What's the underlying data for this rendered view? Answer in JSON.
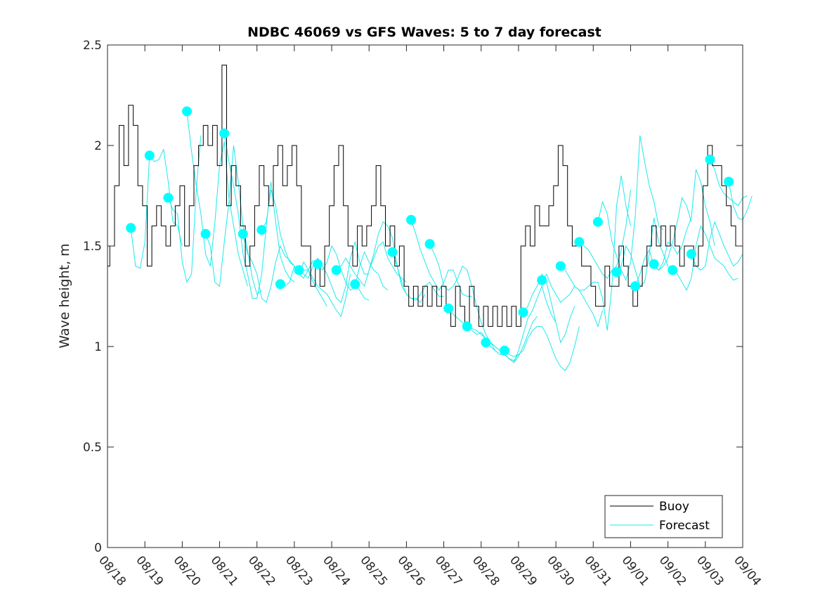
{
  "chart_data": {
    "type": "line",
    "title": "NDBC 46069 vs GFS Waves: 5 to 7 day forecast",
    "xlabel": "",
    "ylabel": "Wave height, m",
    "xlim_days": [
      0,
      17
    ],
    "ylim": [
      0,
      2.5
    ],
    "x_tick_labels": [
      "08/18",
      "08/19",
      "08/20",
      "08/21",
      "08/22",
      "08/23",
      "08/24",
      "08/25",
      "08/26",
      "08/27",
      "08/28",
      "08/29",
      "08/30",
      "08/31",
      "09/01",
      "09/02",
      "09/03",
      "09/04"
    ],
    "y_ticks": [
      0,
      0.5,
      1,
      1.5,
      2,
      2.5
    ],
    "y_tick_labels": [
      "0",
      "0.5",
      "1",
      "1.5",
      "2",
      "2.5"
    ],
    "grid": false,
    "legend": {
      "placement": "bottom-right",
      "entries": [
        {
          "label": "Buoy",
          "color": "#000000"
        },
        {
          "label": "Forecast",
          "color": "#00ffff"
        }
      ]
    },
    "colors": {
      "buoy": "#000000",
      "forecast": "#1de9ec",
      "forecast_marker": "#00ffff",
      "axis": "#262626"
    },
    "series": [
      {
        "name": "Buoy",
        "x_step_days": 0.125,
        "x_start_day": 0,
        "values": [
          1.4,
          1.5,
          1.8,
          2.1,
          1.9,
          2.2,
          2.1,
          1.8,
          1.7,
          1.4,
          1.6,
          1.7,
          1.6,
          1.5,
          1.6,
          1.7,
          1.8,
          1.5,
          1.7,
          1.9,
          2.0,
          2.1,
          2.0,
          2.1,
          1.9,
          2.4,
          1.7,
          1.9,
          1.8,
          1.6,
          1.4,
          1.5,
          1.7,
          1.9,
          1.8,
          1.7,
          1.9,
          2.0,
          1.8,
          1.9,
          2.0,
          1.8,
          1.5,
          1.5,
          1.3,
          1.4,
          1.3,
          1.5,
          1.7,
          1.9,
          2.0,
          1.7,
          1.5,
          1.4,
          1.6,
          1.5,
          1.6,
          1.7,
          1.9,
          1.7,
          1.5,
          1.6,
          1.4,
          1.5,
          1.3,
          1.2,
          1.3,
          1.2,
          1.3,
          1.2,
          1.3,
          1.2,
          1.3,
          1.2,
          1.1,
          1.3,
          1.2,
          1.1,
          1.3,
          1.2,
          1.1,
          1.2,
          1.1,
          1.2,
          1.1,
          1.2,
          1.1,
          1.2,
          1.1,
          1.5,
          1.6,
          1.5,
          1.7,
          1.6,
          1.6,
          1.7,
          1.8,
          2.0,
          1.9,
          1.6,
          1.5,
          1.5,
          1.4,
          1.4,
          1.3,
          1.2,
          1.2,
          1.4,
          1.3,
          1.3,
          1.5,
          1.4,
          1.3,
          1.2,
          1.3,
          1.4,
          1.5,
          1.6,
          1.5,
          1.6,
          1.5,
          1.6,
          1.5,
          1.4,
          1.5,
          1.5,
          1.4,
          1.5,
          1.8,
          2.0,
          1.9,
          1.9,
          1.8,
          1.7,
          1.6,
          1.5,
          1.5
        ]
      },
      {
        "name": "Forecast",
        "description": "Forecast runs, each starting at a marker and extending ~1.5 days at 3-hourly steps",
        "x_step_days": 0.125,
        "runs": [
          {
            "start_day": 0.625,
            "values": [
              1.59,
              1.4,
              1.39,
              1.52,
              1.95
            ]
          },
          {
            "start_day": 1.125,
            "values": [
              1.95,
              1.92,
              1.93,
              1.98,
              1.82,
              1.62,
              1.6,
              1.5
            ]
          },
          {
            "start_day": 1.625,
            "values": [
              1.74,
              1.68,
              1.66,
              1.42,
              1.32,
              1.36,
              1.78,
              2.05
            ]
          },
          {
            "start_day": 2.125,
            "values": [
              2.17,
              1.97,
              1.8,
              1.66,
              1.46,
              1.4,
              1.62,
              1.9,
              2.02,
              1.74,
              1.6,
              1.46,
              1.38,
              1.3
            ]
          },
          {
            "start_day": 2.625,
            "values": [
              1.56,
              1.5,
              1.32,
              1.3,
              1.52,
              1.72,
              2.0,
              1.82,
              1.6,
              1.48,
              1.34,
              1.26,
              1.28
            ]
          },
          {
            "start_day": 3.125,
            "values": [
              2.06,
              1.92,
              1.8,
              1.66,
              1.46,
              1.36,
              1.24,
              1.24,
              1.36,
              1.6,
              1.82,
              1.62,
              1.45,
              1.38,
              1.34,
              1.32
            ]
          },
          {
            "start_day": 3.625,
            "values": [
              1.56,
              1.46,
              1.42,
              1.36,
              1.24,
              1.22,
              1.3,
              1.42,
              1.5,
              1.45,
              1.43,
              1.4,
              1.36,
              1.34,
              1.38,
              1.43
            ]
          },
          {
            "start_day": 4.125,
            "values": [
              1.58,
              1.62,
              1.78,
              1.7,
              1.56,
              1.48,
              1.42,
              1.4,
              1.36,
              1.42,
              1.38,
              1.32,
              1.28,
              1.24,
              1.2
            ]
          },
          {
            "start_day": 4.625,
            "values": [
              1.31,
              1.3,
              1.32,
              1.4,
              1.36,
              1.38,
              1.38,
              1.34,
              1.3,
              1.28,
              1.26,
              1.22,
              1.18,
              1.15,
              1.24,
              1.36
            ]
          },
          {
            "start_day": 5.125,
            "values": [
              1.38,
              1.36,
              1.34,
              1.4,
              1.44,
              1.4,
              1.36,
              1.3,
              1.24,
              1.22,
              1.3,
              1.44,
              1.52,
              1.42,
              1.36,
              1.36
            ]
          },
          {
            "start_day": 5.625,
            "values": [
              1.41,
              1.38,
              1.42,
              1.5,
              1.46,
              1.38,
              1.32,
              1.28,
              1.3,
              1.4,
              1.47,
              1.42,
              1.38,
              1.36,
              1.3,
              1.28
            ]
          },
          {
            "start_day": 6.125,
            "values": [
              1.38,
              1.4,
              1.44,
              1.4,
              1.36,
              1.33,
              1.3,
              1.38,
              1.44,
              1.5,
              1.52,
              1.44,
              1.4,
              1.36,
              1.34,
              1.32
            ]
          },
          {
            "start_day": 6.625,
            "values": [
              1.31,
              1.28,
              1.24,
              1.23
            ]
          },
          {
            "start_day": 7.0,
            "values": [
              1.38,
              1.46,
              1.56,
              1.62,
              1.6,
              1.54,
              1.4,
              1.3,
              1.26,
              1.24,
              1.24,
              1.22,
              1.26
            ]
          },
          {
            "start_day": 7.625,
            "values": [
              1.47,
              1.4,
              1.32,
              1.26,
              1.24,
              1.23,
              1.26,
              1.3,
              1.32,
              1.28,
              1.25,
              1.25
            ]
          },
          {
            "start_day": 8.125,
            "values": [
              1.63,
              1.56,
              1.48,
              1.42,
              1.36,
              1.32,
              1.28,
              1.32,
              1.38,
              1.38,
              1.32,
              1.26,
              1.25,
              1.25
            ]
          },
          {
            "start_day": 8.625,
            "values": [
              1.51,
              1.46,
              1.4,
              1.3,
              1.28,
              1.3,
              1.34,
              1.4,
              1.38,
              1.3,
              1.2,
              1.12,
              1.06,
              1.02,
              0.98,
              0.96
            ]
          },
          {
            "start_day": 9.125,
            "values": [
              1.19,
              1.16,
              1.14,
              1.12,
              1.1,
              1.09,
              1.08,
              1.06,
              1.04,
              1.02,
              1.0,
              0.98,
              0.96,
              0.94,
              0.93,
              0.96
            ]
          },
          {
            "start_day": 9.625,
            "values": [
              1.1,
              1.08,
              1.06,
              1.07,
              1.04,
              1.02,
              1.0,
              0.98,
              0.96,
              0.94,
              0.92,
              0.95,
              1.0,
              1.06,
              1.12,
              1.15
            ]
          },
          {
            "start_day": 10.125,
            "values": [
              1.02,
              1.0,
              0.98,
              0.96,
              0.96,
              0.94,
              0.92,
              0.98,
              1.06,
              1.14,
              1.18,
              1.24,
              1.3,
              1.22,
              1.16,
              1.12
            ]
          },
          {
            "start_day": 10.625,
            "values": [
              0.98,
              0.96,
              0.95,
              0.96,
              0.98,
              1.04,
              1.08,
              1.1,
              1.1,
              1.06,
              1.0,
              0.94,
              0.9,
              0.88,
              0.92,
              1.0,
              1.1
            ]
          },
          {
            "start_day": 11.125,
            "values": [
              1.17,
              1.2,
              1.26,
              1.3,
              1.36,
              1.32,
              1.22,
              1.12,
              1.02,
              1.06,
              1.14,
              1.2
            ]
          },
          {
            "start_day": 11.625,
            "values": [
              1.33,
              1.36,
              1.3,
              1.26,
              1.22,
              1.24,
              1.26,
              1.3,
              1.28,
              1.24,
              1.2,
              1.16,
              1.1,
              1.18
            ]
          },
          {
            "start_day": 12.125,
            "values": [
              1.4,
              1.38,
              1.34,
              1.3,
              1.28,
              1.28,
              1.3,
              1.32,
              1.32,
              1.24,
              1.08,
              1.3,
              1.7,
              1.85,
              1.7,
              1.6
            ]
          },
          {
            "start_day": 12.625,
            "values": [
              1.52,
              1.5,
              1.48,
              1.44,
              1.4,
              1.36,
              1.34,
              1.38,
              1.4,
              1.48,
              1.6,
              1.78
            ]
          },
          {
            "start_day": 13.125,
            "values": [
              1.62,
              1.72,
              1.66,
              1.52,
              1.45,
              1.38,
              1.33,
              1.42,
              1.65,
              2.05,
              1.92,
              1.8,
              1.72,
              1.6,
              1.58
            ]
          },
          {
            "start_day": 13.625,
            "values": [
              1.37,
              1.4,
              1.5,
              1.46,
              1.38,
              1.3,
              1.32,
              1.46,
              1.64,
              1.52,
              1.46,
              1.4,
              1.38,
              1.36
            ]
          },
          {
            "start_day": 14.125,
            "values": [
              1.3,
              1.36,
              1.44,
              1.48,
              1.4,
              1.38,
              1.4,
              1.44,
              1.52,
              1.62,
              1.74,
              1.7,
              1.62
            ]
          },
          {
            "start_day": 14.625,
            "values": [
              1.41,
              1.38,
              1.42,
              1.52,
              1.5,
              1.46,
              1.5,
              1.58,
              1.64,
              1.88,
              1.82,
              1.7,
              1.62,
              1.5
            ]
          },
          {
            "start_day": 15.125,
            "values": [
              1.38,
              1.36,
              1.32,
              1.28,
              1.34,
              1.5,
              1.6,
              1.56,
              1.5,
              1.44,
              1.42,
              1.4,
              1.36,
              1.33,
              1.34
            ]
          },
          {
            "start_day": 15.625,
            "values": [
              1.46,
              1.4,
              1.38,
              1.4,
              1.54,
              1.62,
              1.56,
              1.5,
              1.45,
              1.4,
              1.42,
              1.46
            ]
          },
          {
            "start_day": 16.125,
            "values": [
              1.93,
              1.88,
              1.8,
              1.76,
              1.74,
              1.72,
              1.7,
              1.74,
              1.75
            ]
          },
          {
            "start_day": 16.625,
            "values": [
              1.82,
              1.7,
              1.64,
              1.63,
              1.68,
              1.75
            ]
          }
        ],
        "markers": {
          "x_days": [
            0.625,
            1.125,
            1.625,
            2.125,
            2.625,
            3.125,
            3.625,
            4.125,
            4.625,
            5.125,
            5.625,
            6.125,
            6.625,
            7.625,
            8.125,
            8.625,
            9.125,
            9.625,
            10.125,
            10.625,
            11.125,
            11.625,
            12.125,
            12.625,
            13.125,
            13.625,
            14.125,
            14.625,
            15.125,
            15.625,
            16.125,
            16.625
          ],
          "values": [
            1.59,
            1.95,
            1.74,
            2.17,
            1.56,
            2.06,
            1.56,
            1.58,
            1.31,
            1.38,
            1.41,
            1.38,
            1.31,
            1.47,
            1.63,
            1.51,
            1.19,
            1.1,
            1.02,
            0.98,
            1.17,
            1.33,
            1.4,
            1.52,
            1.62,
            1.37,
            1.3,
            1.41,
            1.38,
            1.46,
            1.93,
            1.82
          ]
        }
      }
    ]
  }
}
